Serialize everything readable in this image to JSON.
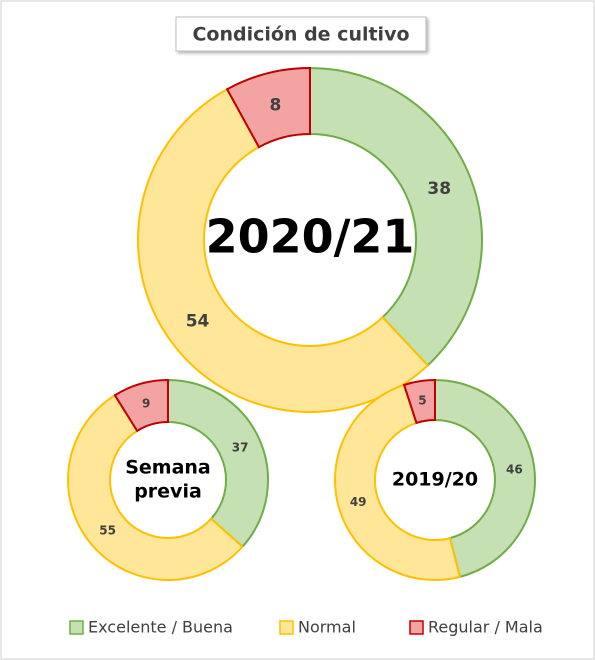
{
  "title": "Condición de cultivo",
  "chart_data": [
    {
      "type": "donut",
      "center_label": [
        "2020/21"
      ],
      "categories": [
        "Excelente / Buena",
        "Normal",
        "Regular / Mala"
      ],
      "values": [
        38,
        54,
        8
      ],
      "colors": [
        "#c5e0b3",
        "#ffe699",
        "#f4a3a3"
      ],
      "edgecolors": [
        "#70ad47",
        "#ffc000",
        "#c00000"
      ]
    },
    {
      "type": "donut",
      "center_label": [
        "Semana",
        "previa"
      ],
      "categories": [
        "Excelente / Buena",
        "Normal",
        "Regular / Mala"
      ],
      "values": [
        37,
        55,
        9
      ],
      "colors": [
        "#c5e0b3",
        "#ffe699",
        "#f4a3a3"
      ],
      "edgecolors": [
        "#70ad47",
        "#ffc000",
        "#c00000"
      ]
    },
    {
      "type": "donut",
      "center_label": [
        "2019/20"
      ],
      "categories": [
        "Excelente / Buena",
        "Normal",
        "Regular / Mala"
      ],
      "values": [
        46,
        49,
        5
      ],
      "colors": [
        "#c5e0b3",
        "#ffe699",
        "#f4a3a3"
      ],
      "edgecolors": [
        "#70ad47",
        "#ffc000",
        "#c00000"
      ]
    }
  ]
}
